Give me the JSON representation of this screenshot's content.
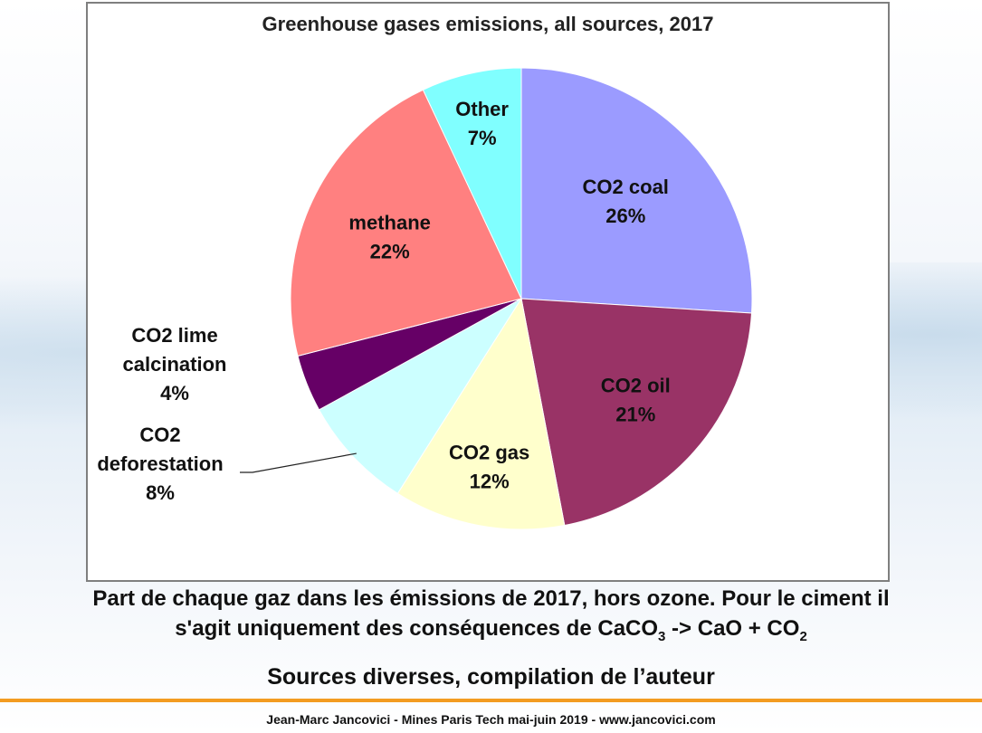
{
  "colors": {
    "coal": "#9b9bff",
    "oil": "#993366",
    "gas": "#ffffcc",
    "deforestation": "#ccffff",
    "lime": "#660066",
    "methane": "#ff8080",
    "other": "#80ffff",
    "accent_rule": "#f39c21"
  },
  "chart_data": {
    "type": "pie",
    "title": "Greenhouse gases emissions, all sources, 2017",
    "slices": [
      {
        "label": [
          "CO2 coal"
        ],
        "value": 26,
        "value_label": "26%",
        "color": "#9b9bff"
      },
      {
        "label": [
          "CO2 oil"
        ],
        "value": 21,
        "value_label": "21%",
        "color": "#993366"
      },
      {
        "label": [
          "CO2 gas"
        ],
        "value": 12,
        "value_label": "12%",
        "color": "#ffffcc"
      },
      {
        "label": [
          "CO2",
          "deforestation"
        ],
        "value": 8,
        "value_label": "8%",
        "color": "#ccffff"
      },
      {
        "label": [
          "CO2 lime",
          "calcination"
        ],
        "value": 4,
        "value_label": "4%",
        "color": "#660066"
      },
      {
        "label": [
          "methane"
        ],
        "value": 22,
        "value_label": "22%",
        "color": "#ff8080"
      },
      {
        "label": [
          "Other"
        ],
        "value": 7,
        "value_label": "7%",
        "color": "#80ffff"
      }
    ]
  },
  "caption": {
    "line1": "Part de chaque gaz dans les émissions de 2017, hors ozone. Pour le ciment il",
    "line2_prefix": "s'agit uniquement des conséquences de CaCO",
    "line2_sub1": "3",
    "line2_mid": " -> CaO + CO",
    "line2_sub2": "2",
    "source": "Sources diverses, compilation de l’auteur"
  },
  "footer": "Jean-Marc Jancovici - Mines Paris Tech mai-juin 2019 - www.jancovici.com"
}
